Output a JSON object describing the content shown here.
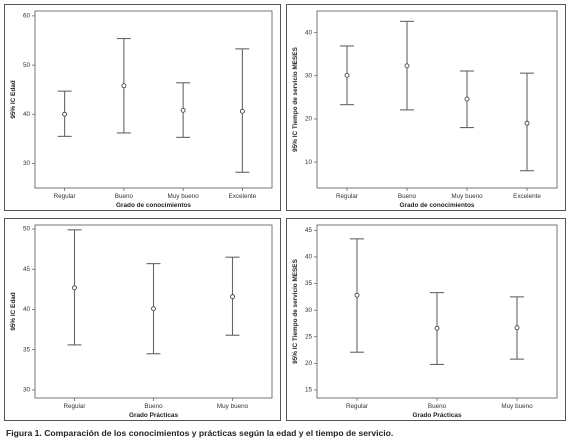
{
  "caption": "Figura 1. Comparación de los conocimientos y prácticas según la edad y el tiempo de servicio.",
  "chart_data": [
    {
      "type": "error-bar",
      "xlabel": "Grado de conocimientos",
      "ylabel": "95% IC Edad",
      "categories": [
        "Regular",
        "Bueno",
        "Muy bueno",
        "Excelente"
      ],
      "ylim": [
        25,
        61
      ],
      "yticks": [
        30,
        40,
        50,
        60
      ],
      "lower": [
        35.5,
        36.2,
        35.3,
        28.2
      ],
      "mean": [
        40.0,
        45.8,
        40.8,
        40.6
      ],
      "upper": [
        44.7,
        55.4,
        46.4,
        53.3
      ]
    },
    {
      "type": "error-bar",
      "xlabel": "Grado de conocimientos",
      "ylabel": "95% IC Tiempo de servicio MESES",
      "categories": [
        "Regular",
        "Bueno",
        "Muy bueno",
        "Excelente"
      ],
      "ylim": [
        4,
        45
      ],
      "yticks": [
        10,
        20,
        30,
        40
      ],
      "lower": [
        23.3,
        22.1,
        18.0,
        8.0
      ],
      "mean": [
        30.1,
        32.3,
        24.6,
        19.0
      ],
      "upper": [
        36.9,
        42.6,
        31.1,
        30.6
      ]
    },
    {
      "type": "error-bar",
      "xlabel": "Grado Prácticas",
      "ylabel": "95% IC Edad",
      "categories": [
        "Regular",
        "Bueno",
        "Muy bueno"
      ],
      "ylim": [
        29,
        50.5
      ],
      "yticks": [
        30,
        35,
        40,
        45,
        50
      ],
      "lower": [
        35.6,
        34.5,
        36.8
      ],
      "mean": [
        42.7,
        40.1,
        41.6
      ],
      "upper": [
        49.9,
        45.7,
        46.5
      ]
    },
    {
      "type": "error-bar",
      "xlabel": "Grado Prácticas",
      "ylabel": "95% IC Tiempo de servicio MESES",
      "categories": [
        "Regular",
        "Bueno",
        "Muy bueno"
      ],
      "ylim": [
        13.5,
        46
      ],
      "yticks": [
        15,
        20,
        25,
        30,
        35,
        40,
        45
      ],
      "lower": [
        22.1,
        19.8,
        20.8
      ],
      "mean": [
        32.8,
        26.6,
        26.7
      ],
      "upper": [
        43.4,
        33.3,
        32.5
      ]
    }
  ]
}
